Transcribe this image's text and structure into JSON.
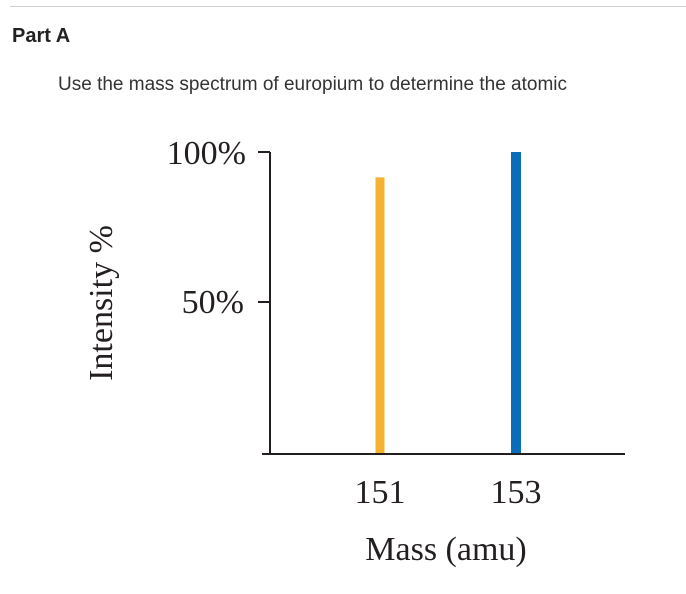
{
  "part": {
    "title": "Part A"
  },
  "question": {
    "prompt": "Use the mass spectrum of europium to determine the atomic"
  },
  "colors": {
    "bar_151": "#f5b130",
    "bar_153": "#0a6db9",
    "axis": "#231f20"
  },
  "chart_data": {
    "type": "bar",
    "title": "",
    "xlabel": "Mass (amu)",
    "ylabel": "Intensity %",
    "categories": [
      "151",
      "153"
    ],
    "values": [
      91.6,
      100
    ],
    "ylim": [
      0,
      100
    ],
    "yticks": [
      {
        "value": 50,
        "label": "50%"
      },
      {
        "value": 100,
        "label": "100%"
      }
    ],
    "grid": false,
    "legend": "none"
  }
}
